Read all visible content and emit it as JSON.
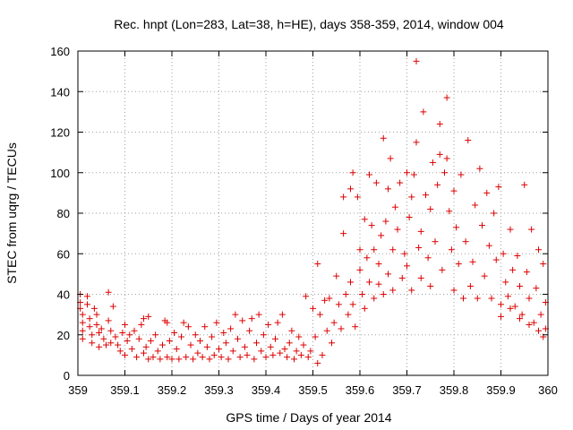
{
  "chart_data": {
    "type": "scatter",
    "title": "Rec. hnpt (Lon=283, Lat=38, h=HE), days 358-359, 2014, window 004",
    "xlabel": "GPS time / Days of year 2014",
    "ylabel": "STEC from uqrg / TECUs",
    "xlim": [
      359,
      360
    ],
    "ylim": [
      0,
      160
    ],
    "x_ticks": [
      "359",
      "359.1",
      "359.2",
      "359.3",
      "359.4",
      "359.5",
      "359.6",
      "359.7",
      "359.8",
      "359.9",
      "360"
    ],
    "y_ticks": [
      "0",
      "20",
      "40",
      "60",
      "80",
      "100",
      "120",
      "140",
      "160"
    ],
    "grid": true,
    "marker": "+",
    "marker_color": "#dd0000",
    "series": [
      {
        "points": [
          [
            359.005,
            40
          ],
          [
            359.005,
            36
          ],
          [
            359.005,
            33
          ],
          [
            359.01,
            30
          ],
          [
            359.01,
            26
          ],
          [
            359.01,
            22
          ],
          [
            359.01,
            18
          ],
          [
            359.02,
            39
          ],
          [
            359.02,
            35
          ],
          [
            359.025,
            28
          ],
          [
            359.025,
            24
          ],
          [
            359.03,
            20
          ],
          [
            359.03,
            16
          ],
          [
            359.035,
            33
          ],
          [
            359.04,
            30
          ],
          [
            359.04,
            25
          ],
          [
            359.045,
            21
          ],
          [
            359.045,
            14
          ],
          [
            359.05,
            23
          ],
          [
            359.055,
            18
          ],
          [
            359.06,
            15
          ],
          [
            359.065,
            41
          ],
          [
            359.065,
            27
          ],
          [
            359.07,
            22
          ],
          [
            359.07,
            16
          ],
          [
            359.075,
            34
          ],
          [
            359.08,
            19
          ],
          [
            359.085,
            15
          ],
          [
            359.09,
            12
          ],
          [
            359.095,
            21
          ],
          [
            359.1,
            25
          ],
          [
            359.1,
            10
          ],
          [
            359.105,
            17
          ],
          [
            359.11,
            20
          ],
          [
            359.115,
            13
          ],
          [
            359.12,
            22
          ],
          [
            359.125,
            9
          ],
          [
            359.13,
            18
          ],
          [
            359.135,
            25
          ],
          [
            359.14,
            28
          ],
          [
            359.14,
            11
          ],
          [
            359.145,
            14
          ],
          [
            359.15,
            29
          ],
          [
            359.15,
            8
          ],
          [
            359.155,
            17
          ],
          [
            359.16,
            9
          ],
          [
            359.165,
            20
          ],
          [
            359.17,
            12
          ],
          [
            359.175,
            8
          ],
          [
            359.18,
            15
          ],
          [
            359.185,
            27
          ],
          [
            359.19,
            26
          ],
          [
            359.19,
            9
          ],
          [
            359.195,
            17
          ],
          [
            359.2,
            8
          ],
          [
            359.205,
            21
          ],
          [
            359.21,
            13
          ],
          [
            359.215,
            8
          ],
          [
            359.22,
            19
          ],
          [
            359.225,
            26
          ],
          [
            359.23,
            9
          ],
          [
            359.235,
            24
          ],
          [
            359.24,
            15
          ],
          [
            359.245,
            8
          ],
          [
            359.25,
            20
          ],
          [
            359.255,
            11
          ],
          [
            359.26,
            17
          ],
          [
            359.265,
            9
          ],
          [
            359.27,
            24
          ],
          [
            359.275,
            14
          ],
          [
            359.28,
            8
          ],
          [
            359.285,
            19
          ],
          [
            359.29,
            10
          ],
          [
            359.295,
            26
          ],
          [
            359.3,
            13
          ],
          [
            359.305,
            9
          ],
          [
            359.31,
            21
          ],
          [
            359.315,
            16
          ],
          [
            359.32,
            8
          ],
          [
            359.325,
            23
          ],
          [
            359.33,
            12
          ],
          [
            359.335,
            30
          ],
          [
            359.34,
            18
          ],
          [
            359.345,
            9
          ],
          [
            359.35,
            27
          ],
          [
            359.355,
            14
          ],
          [
            359.36,
            10
          ],
          [
            359.365,
            22
          ],
          [
            359.37,
            28
          ],
          [
            359.375,
            8
          ],
          [
            359.38,
            16
          ],
          [
            359.385,
            30
          ],
          [
            359.39,
            12
          ],
          [
            359.395,
            20
          ],
          [
            359.4,
            9
          ],
          [
            359.405,
            25
          ],
          [
            359.41,
            14
          ],
          [
            359.415,
            10
          ],
          [
            359.42,
            18
          ],
          [
            359.425,
            26
          ],
          [
            359.43,
            11
          ],
          [
            359.435,
            30
          ],
          [
            359.44,
            13
          ],
          [
            359.445,
            9
          ],
          [
            359.45,
            16
          ],
          [
            359.455,
            22
          ],
          [
            359.46,
            8
          ],
          [
            359.465,
            12
          ],
          [
            359.47,
            19
          ],
          [
            359.475,
            10
          ],
          [
            359.48,
            15
          ],
          [
            359.485,
            39
          ],
          [
            359.49,
            9
          ],
          [
            359.495,
            12
          ],
          [
            359.5,
            33
          ],
          [
            359.505,
            19
          ],
          [
            359.51,
            55
          ],
          [
            359.51,
            6
          ],
          [
            359.515,
            30
          ],
          [
            359.52,
            10
          ],
          [
            359.525,
            37
          ],
          [
            359.53,
            22
          ],
          [
            359.535,
            38
          ],
          [
            359.54,
            16
          ],
          [
            359.545,
            26
          ],
          [
            359.55,
            49
          ],
          [
            359.555,
            35
          ],
          [
            359.56,
            23
          ],
          [
            359.565,
            70
          ],
          [
            359.565,
            88
          ],
          [
            359.57,
            40
          ],
          [
            359.575,
            30
          ],
          [
            359.58,
            92
          ],
          [
            359.58,
            46
          ],
          [
            359.585,
            100
          ],
          [
            359.585,
            35
          ],
          [
            359.59,
            24
          ],
          [
            359.595,
            88
          ],
          [
            359.6,
            62
          ],
          [
            359.6,
            52
          ],
          [
            359.605,
            40
          ],
          [
            359.61,
            77
          ],
          [
            359.61,
            33
          ],
          [
            359.615,
            58
          ],
          [
            359.62,
            99
          ],
          [
            359.62,
            46
          ],
          [
            359.625,
            74
          ],
          [
            359.63,
            62
          ],
          [
            359.63,
            38
          ],
          [
            359.635,
            95
          ],
          [
            359.64,
            55
          ],
          [
            359.64,
            45
          ],
          [
            359.645,
            69
          ],
          [
            359.65,
            117
          ],
          [
            359.65,
            40
          ],
          [
            359.655,
            76
          ],
          [
            359.66,
            92
          ],
          [
            359.66,
            50
          ],
          [
            359.665,
            107
          ],
          [
            359.67,
            62
          ],
          [
            359.67,
            42
          ],
          [
            359.675,
            83
          ],
          [
            359.68,
            72
          ],
          [
            359.685,
            95
          ],
          [
            359.69,
            48
          ],
          [
            359.695,
            60
          ],
          [
            359.7,
            100
          ],
          [
            359.7,
            54
          ],
          [
            359.705,
            78
          ],
          [
            359.71,
            88
          ],
          [
            359.71,
            42
          ],
          [
            359.715,
            99
          ],
          [
            359.72,
            155
          ],
          [
            359.72,
            115
          ],
          [
            359.725,
            63
          ],
          [
            359.73,
            71
          ],
          [
            359.73,
            48
          ],
          [
            359.735,
            130
          ],
          [
            359.74,
            89
          ],
          [
            359.745,
            58
          ],
          [
            359.75,
            82
          ],
          [
            359.75,
            44
          ],
          [
            359.755,
            105
          ],
          [
            359.76,
            66
          ],
          [
            359.765,
            94
          ],
          [
            359.77,
            124
          ],
          [
            359.77,
            109
          ],
          [
            359.775,
            52
          ],
          [
            359.78,
            100
          ],
          [
            359.785,
            137
          ],
          [
            359.785,
            107
          ],
          [
            359.79,
            81
          ],
          [
            359.795,
            62
          ],
          [
            359.8,
            91
          ],
          [
            359.8,
            42
          ],
          [
            359.805,
            73
          ],
          [
            359.81,
            55
          ],
          [
            359.815,
            99
          ],
          [
            359.82,
            38
          ],
          [
            359.825,
            66
          ],
          [
            359.83,
            116
          ],
          [
            359.835,
            44
          ],
          [
            359.84,
            56
          ],
          [
            359.845,
            84
          ],
          [
            359.85,
            38
          ],
          [
            359.855,
            102
          ],
          [
            359.86,
            74
          ],
          [
            359.865,
            49
          ],
          [
            359.87,
            90
          ],
          [
            359.875,
            64
          ],
          [
            359.88,
            38
          ],
          [
            359.885,
            80
          ],
          [
            359.89,
            57
          ],
          [
            359.895,
            93
          ],
          [
            359.9,
            35
          ],
          [
            359.905,
            60
          ],
          [
            359.91,
            46
          ],
          [
            359.915,
            39
          ],
          [
            359.92,
            72
          ],
          [
            359.925,
            52
          ],
          [
            359.93,
            34
          ],
          [
            359.935,
            59
          ],
          [
            359.94,
            44
          ],
          [
            359.945,
            30
          ],
          [
            359.95,
            94
          ],
          [
            359.955,
            51
          ],
          [
            359.96,
            38
          ],
          [
            359.965,
            72
          ],
          [
            359.97,
            26
          ],
          [
            359.975,
            43
          ],
          [
            359.98,
            62
          ],
          [
            359.985,
            30
          ],
          [
            359.99,
            55
          ],
          [
            359.99,
            19
          ],
          [
            359.995,
            36
          ],
          [
            359.995,
            23
          ],
          [
            359.9,
            29
          ],
          [
            359.92,
            33
          ],
          [
            359.94,
            28
          ],
          [
            359.96,
            25
          ],
          [
            359.98,
            22
          ]
        ]
      }
    ]
  }
}
